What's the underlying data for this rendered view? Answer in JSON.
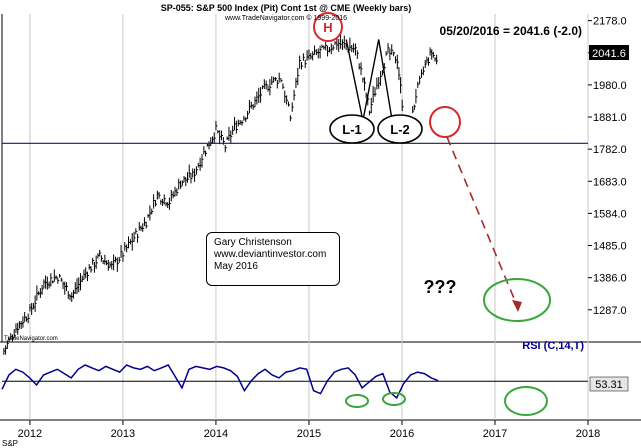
{
  "chart_data": {
    "type": "line",
    "title": "SP-055:  S&P 500 Index (Pit) Cont 1st @ CME  (Weekly bars)",
    "subtitle": "www.TradeNavigator.com © 1999-2016",
    "watermark": "TradeNavigator.com",
    "source": "S&P",
    "last_quote": "05/20/2016 = 2041.6 (-2.0)",
    "last_value_label": "2041.6",
    "x_ticks": [
      "2012",
      "2013",
      "2014",
      "2015",
      "2016",
      "2017",
      "2018"
    ],
    "xlim": [
      2011.7,
      2018.0
    ],
    "y_ticks": [
      "2178.0",
      "2079.0",
      "1980.0",
      "1881.0",
      "1782.0",
      "1683.0",
      "1584.0",
      "1485.0",
      "1386.0",
      "1287.0"
    ],
    "ylim": [
      1200,
      2180
    ],
    "support_level": 1800,
    "series": [
      {
        "type": "ohlc",
        "x": [
          2011.72,
          2011.85,
          2012.0,
          2012.15,
          2012.3,
          2012.45,
          2012.6,
          2012.75,
          2012.88,
          2013.0,
          2013.12,
          2013.25,
          2013.37,
          2013.5,
          2013.62,
          2013.75,
          2013.87,
          2014.0,
          2014.1,
          2014.2,
          2014.3,
          2014.4,
          2014.5,
          2014.6,
          2014.7,
          2014.8,
          2014.9,
          2015.0,
          2015.1,
          2015.2,
          2015.3,
          2015.4,
          2015.5,
          2015.58,
          2015.65,
          2015.75,
          2015.85,
          2015.95,
          2016.02,
          2016.08,
          2016.15,
          2016.25,
          2016.32,
          2016.39
        ],
        "values": [
          1160,
          1230,
          1280,
          1370,
          1390,
          1330,
          1400,
          1450,
          1420,
          1460,
          1510,
          1560,
          1640,
          1620,
          1680,
          1700,
          1770,
          1840,
          1790,
          1850,
          1880,
          1920,
          1960,
          1990,
          2000,
          1880,
          2050,
          2060,
          2080,
          2090,
          2110,
          2100,
          2090,
          2000,
          1900,
          2000,
          2080,
          2060,
          1880,
          1830,
          1950,
          2040,
          2080,
          2041.6
        ]
      }
    ],
    "rsi": {
      "label": "RSI (C,14,T)",
      "last_value": "53.31",
      "values": [
        42,
        62,
        70,
        66,
        58,
        48,
        62,
        66,
        70,
        64,
        58,
        70,
        76,
        72,
        68,
        74,
        70,
        66,
        76,
        72,
        70,
        74,
        68,
        72,
        76,
        60,
        44,
        70,
        74,
        72,
        70,
        74,
        72,
        68,
        60,
        40,
        54,
        64,
        70,
        62,
        58,
        66,
        68,
        72,
        70,
        40,
        36,
        54,
        66,
        70,
        72,
        62,
        44,
        52,
        60,
        64,
        38,
        30,
        50,
        62,
        66,
        64,
        58,
        54
      ]
    },
    "annotations": {
      "head": "H",
      "left_low": "L-1",
      "right_low": "L-2",
      "question": "???"
    }
  },
  "note": {
    "line1": "Gary Christenson",
    "line2": "www.deviantinvestor.com",
    "line3": "May 2016"
  }
}
